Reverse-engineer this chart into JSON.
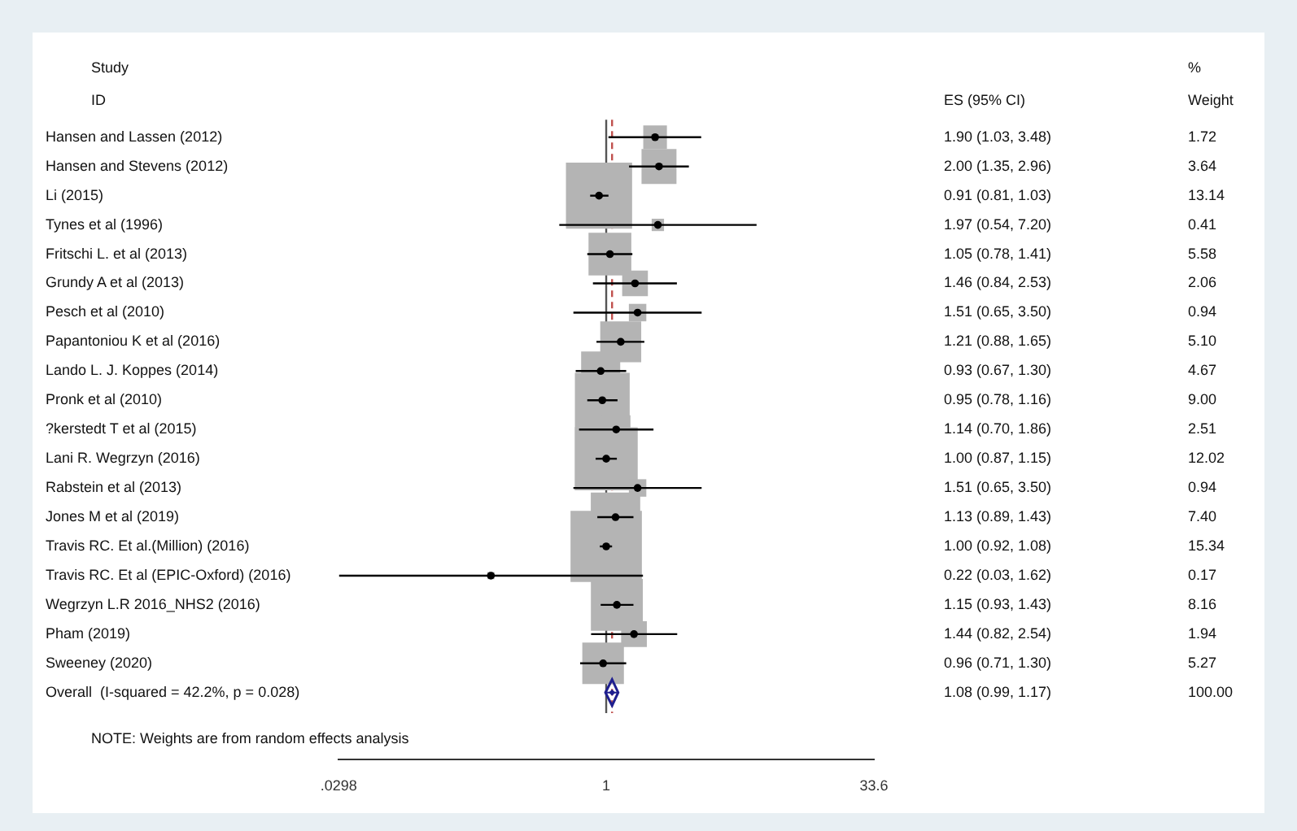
{
  "chart_data": {
    "type": "bubble",
    "orientation": "horizontal",
    "log": "x",
    "xlim": [
      0.0298,
      33.6
    ],
    "xticks": [
      {
        "value": 0.0298,
        "label": ".0298"
      },
      1,
      33.6
    ],
    "grid": false,
    "legend": false,
    "categories": [
      "Hansen and Lassen (2012)",
      "Hansen and Stevens (2012)",
      "Li (2015)",
      "Tynes et al (1996)",
      "Fritschi L. et al (2013)",
      "Grundy A et al (2013)",
      "Pesch et al (2010)",
      "Papantoniou K et al (2016)",
      "Lando L. J. Koppes (2014)",
      "Pronk et al (2010)",
      "?kerstedt T et al (2015)",
      "Lani R. Wegrzyn (2016)",
      "Rabstein et al (2013)",
      "Jones M et al (2019)",
      "Travis RC. Et al.(Million) (2016)",
      "Travis RC. Et al (EPIC-Oxford) (2016)",
      "Wegrzyn L.R 2016_NHS2 (2016)",
      "Pham (2019)",
      "Sweeney (2020)",
      "Overall  (I-squared = 42.2%, p = 0.028)"
    ],
    "annotations": [
      "Study",
      "ID",
      "ES (95% CI)",
      "%",
      "Weight",
      "NOTE: Weights are from random effects analysis",
      "1.72",
      "3.64",
      "13.14",
      "0.41",
      "5.58",
      "2.06",
      "0.94",
      "5.10",
      "4.67",
      "9.00",
      "2.51",
      "12.02",
      "0.94",
      "7.40",
      "15.34",
      "0.17",
      "8.16",
      "1.94",
      "5.27",
      "100.00",
      "1.08 (0.99, 1.17)"
    ],
    "ref_lines": [
      {
        "axis": "x",
        "value": 1,
        "color": "#555555",
        "line_style": "solid"
      },
      {
        "axis": "x",
        "value": 1.08,
        "color": "#c0504d",
        "line_style": "dashed"
      }
    ],
    "series": [
      {
        "color": "#b4b4b4",
        "marker": "square",
        "values": [
          1.9,
          2.0,
          0.91,
          1.97,
          1.05,
          1.46,
          1.51,
          1.21,
          0.93,
          0.95,
          1.14,
          1.0,
          1.51,
          1.13,
          1.0,
          0.22,
          1.15,
          1.44,
          0.96,
          null
        ],
        "errors": [
          [
            1.03,
            3.48
          ],
          [
            1.35,
            2.96
          ],
          [
            0.81,
            1.03
          ],
          [
            0.54,
            7.2
          ],
          [
            0.78,
            1.41
          ],
          [
            0.84,
            2.53
          ],
          [
            0.65,
            3.5
          ],
          [
            0.88,
            1.65
          ],
          [
            0.67,
            1.3
          ],
          [
            0.78,
            1.16
          ],
          [
            0.7,
            1.86
          ],
          [
            0.87,
            1.15
          ],
          [
            0.65,
            3.5
          ],
          [
            0.89,
            1.43
          ],
          [
            0.92,
            1.08
          ],
          [
            0.03,
            1.62
          ],
          [
            0.93,
            1.43
          ],
          [
            0.82,
            2.54
          ],
          [
            0.71,
            1.3
          ],
          null
        ],
        "sizes": [
          0.11,
          0.24,
          0.86,
          0.03,
          0.36,
          0.13,
          0.06,
          0.33,
          0.3,
          0.59,
          0.16,
          0.78,
          0.06,
          0.48,
          1,
          0.01,
          0.53,
          0.13,
          0.34,
          null
        ],
        "value_labels": [
          "1.90 (1.03, 3.48)",
          "2.00 (1.35, 2.96)",
          "0.91 (0.81, 1.03)",
          "1.97 (0.54, 7.20)",
          "1.05 (0.78, 1.41)",
          "1.46 (0.84, 2.53)",
          "1.51 (0.65, 3.50)",
          "1.21 (0.88, 1.65)",
          "0.93 (0.67, 1.30)",
          "0.95 (0.78, 1.16)",
          "1.14 (0.70, 1.86)",
          "1.00 (0.87, 1.15)",
          "1.51 (0.65, 3.50)",
          "1.13 (0.89, 1.43)",
          "1.00 (0.92, 1.08)",
          "0.22 (0.03, 1.62)",
          "1.15 (0.93, 1.43)",
          "1.44 (0.82, 2.54)",
          "0.96 (0.71, 1.30)",
          null
        ]
      },
      {
        "color": "#1f1f8f",
        "marker": "diamond",
        "values": [
          null,
          null,
          null,
          null,
          null,
          null,
          null,
          null,
          null,
          null,
          null,
          null,
          null,
          null,
          null,
          null,
          null,
          null,
          null,
          1.08
        ],
        "errors": [
          null,
          null,
          null,
          null,
          null,
          null,
          null,
          null,
          null,
          null,
          null,
          null,
          null,
          null,
          null,
          null,
          null,
          null,
          null,
          [
            0.99,
            1.17
          ]
        ]
      }
    ]
  }
}
